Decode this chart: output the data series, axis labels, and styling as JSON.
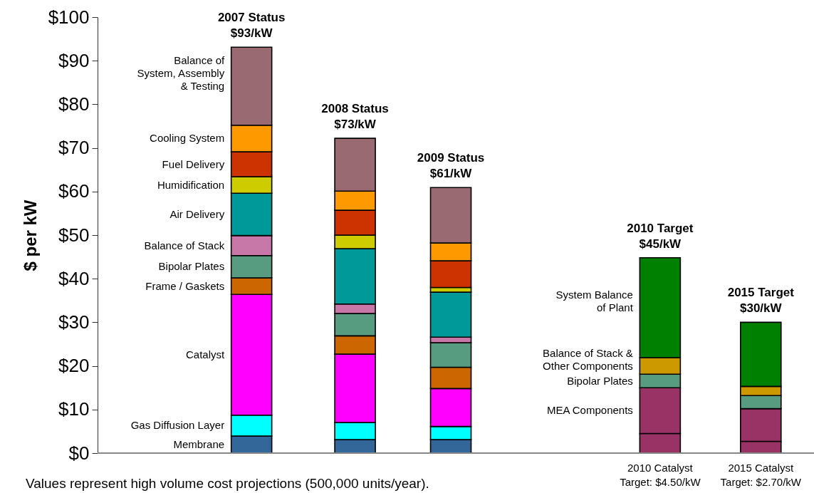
{
  "chart_data": {
    "type": "bar",
    "stacked": true,
    "ylabel": "$ per kW",
    "categories": [
      null,
      null,
      null,
      null,
      null
    ],
    "totals": [
      "2007 Status\n$93/kW",
      "2008 Status\n$73/kW",
      "2009 Status\n$61/kW",
      "2010 Target\n$45/kW",
      "2015 Target\n$30/kW"
    ],
    "series": [
      {
        "name": "Membrane",
        "color": "#336699",
        "values": [
          3.9,
          3.1,
          3.1,
          null,
          null
        ]
      },
      {
        "name": "Gas Diffusion Layer",
        "color": "#00ffff",
        "values": [
          4.8,
          3.9,
          3.0,
          null,
          null
        ]
      },
      {
        "name": "Catalyst",
        "color": "#ff00ff",
        "values": [
          27.7,
          15.7,
          8.7,
          null,
          null
        ]
      },
      {
        "name": "Frame / Gaskets",
        "color": "#cc6600",
        "values": [
          3.8,
          4.2,
          4.9,
          null,
          null
        ]
      },
      {
        "name": "Bipolar Plates",
        "color": "#579c80",
        "values": [
          5.1,
          5.1,
          5.6,
          null,
          null
        ]
      },
      {
        "name": "Balance of Stack",
        "color": "#c878a8",
        "values": [
          4.6,
          2.2,
          1.3,
          null,
          null
        ]
      },
      {
        "name": "Air Delivery",
        "color": "#009999",
        "values": [
          9.7,
          12.7,
          10.3,
          null,
          null
        ]
      },
      {
        "name": "Humidification",
        "color": "#cccc00",
        "values": [
          3.8,
          3.1,
          1.1,
          null,
          null
        ]
      },
      {
        "name": "Fuel Delivery",
        "color": "#cc3300",
        "values": [
          5.7,
          5.7,
          6.1,
          null,
          null
        ]
      },
      {
        "name": "Cooling System",
        "color": "#ff9900",
        "values": [
          6.1,
          4.4,
          4.1,
          null,
          null
        ]
      },
      {
        "name": "Balance of\nSystem, Assembly\n& Testing",
        "color": "#9a6a72",
        "values": [
          17.9,
          12.1,
          12.7,
          null,
          null
        ]
      },
      {
        "color": "#993366",
        "values": [
          null,
          null,
          null,
          4.5,
          2.7
        ],
        "value_labels": [
          null,
          null,
          null,
          "2010 Catalyst\nTarget: $4.50/kW",
          "2015 Catalyst\nTarget: $2.70/kW"
        ]
      },
      {
        "name": "MEA Components",
        "color": "#993366",
        "values": [
          null,
          null,
          null,
          10.5,
          7.5
        ]
      },
      {
        "name": "Bipolar Plates",
        "color": "#579c80",
        "values": [
          null,
          null,
          null,
          3.1,
          3.0
        ]
      },
      {
        "name": "Balance of Stack &\nOther Components",
        "color": "#cc9900",
        "values": [
          null,
          null,
          null,
          3.8,
          2.1
        ]
      },
      {
        "name": "System Balance\nof Plant",
        "color": "#008000",
        "values": [
          null,
          null,
          null,
          22.9,
          14.7
        ]
      }
    ],
    "ylim": [
      0,
      100
    ],
    "yticks": [
      {
        "value": 0,
        "label": "$0"
      },
      {
        "value": 10,
        "label": "$10"
      },
      {
        "value": 20,
        "label": "$20"
      },
      {
        "value": 30,
        "label": "$30"
      },
      {
        "value": 40,
        "label": "$40"
      },
      {
        "value": 50,
        "label": "$50"
      },
      {
        "value": 60,
        "label": "$60"
      },
      {
        "value": 70,
        "label": "$70"
      },
      {
        "value": 80,
        "label": "$80"
      },
      {
        "value": 90,
        "label": "$90"
      },
      {
        "value": 100,
        "label": "$100"
      }
    ],
    "annotations": [
      "Values represent high volume cost projections (500,000 units/year)."
    ]
  }
}
